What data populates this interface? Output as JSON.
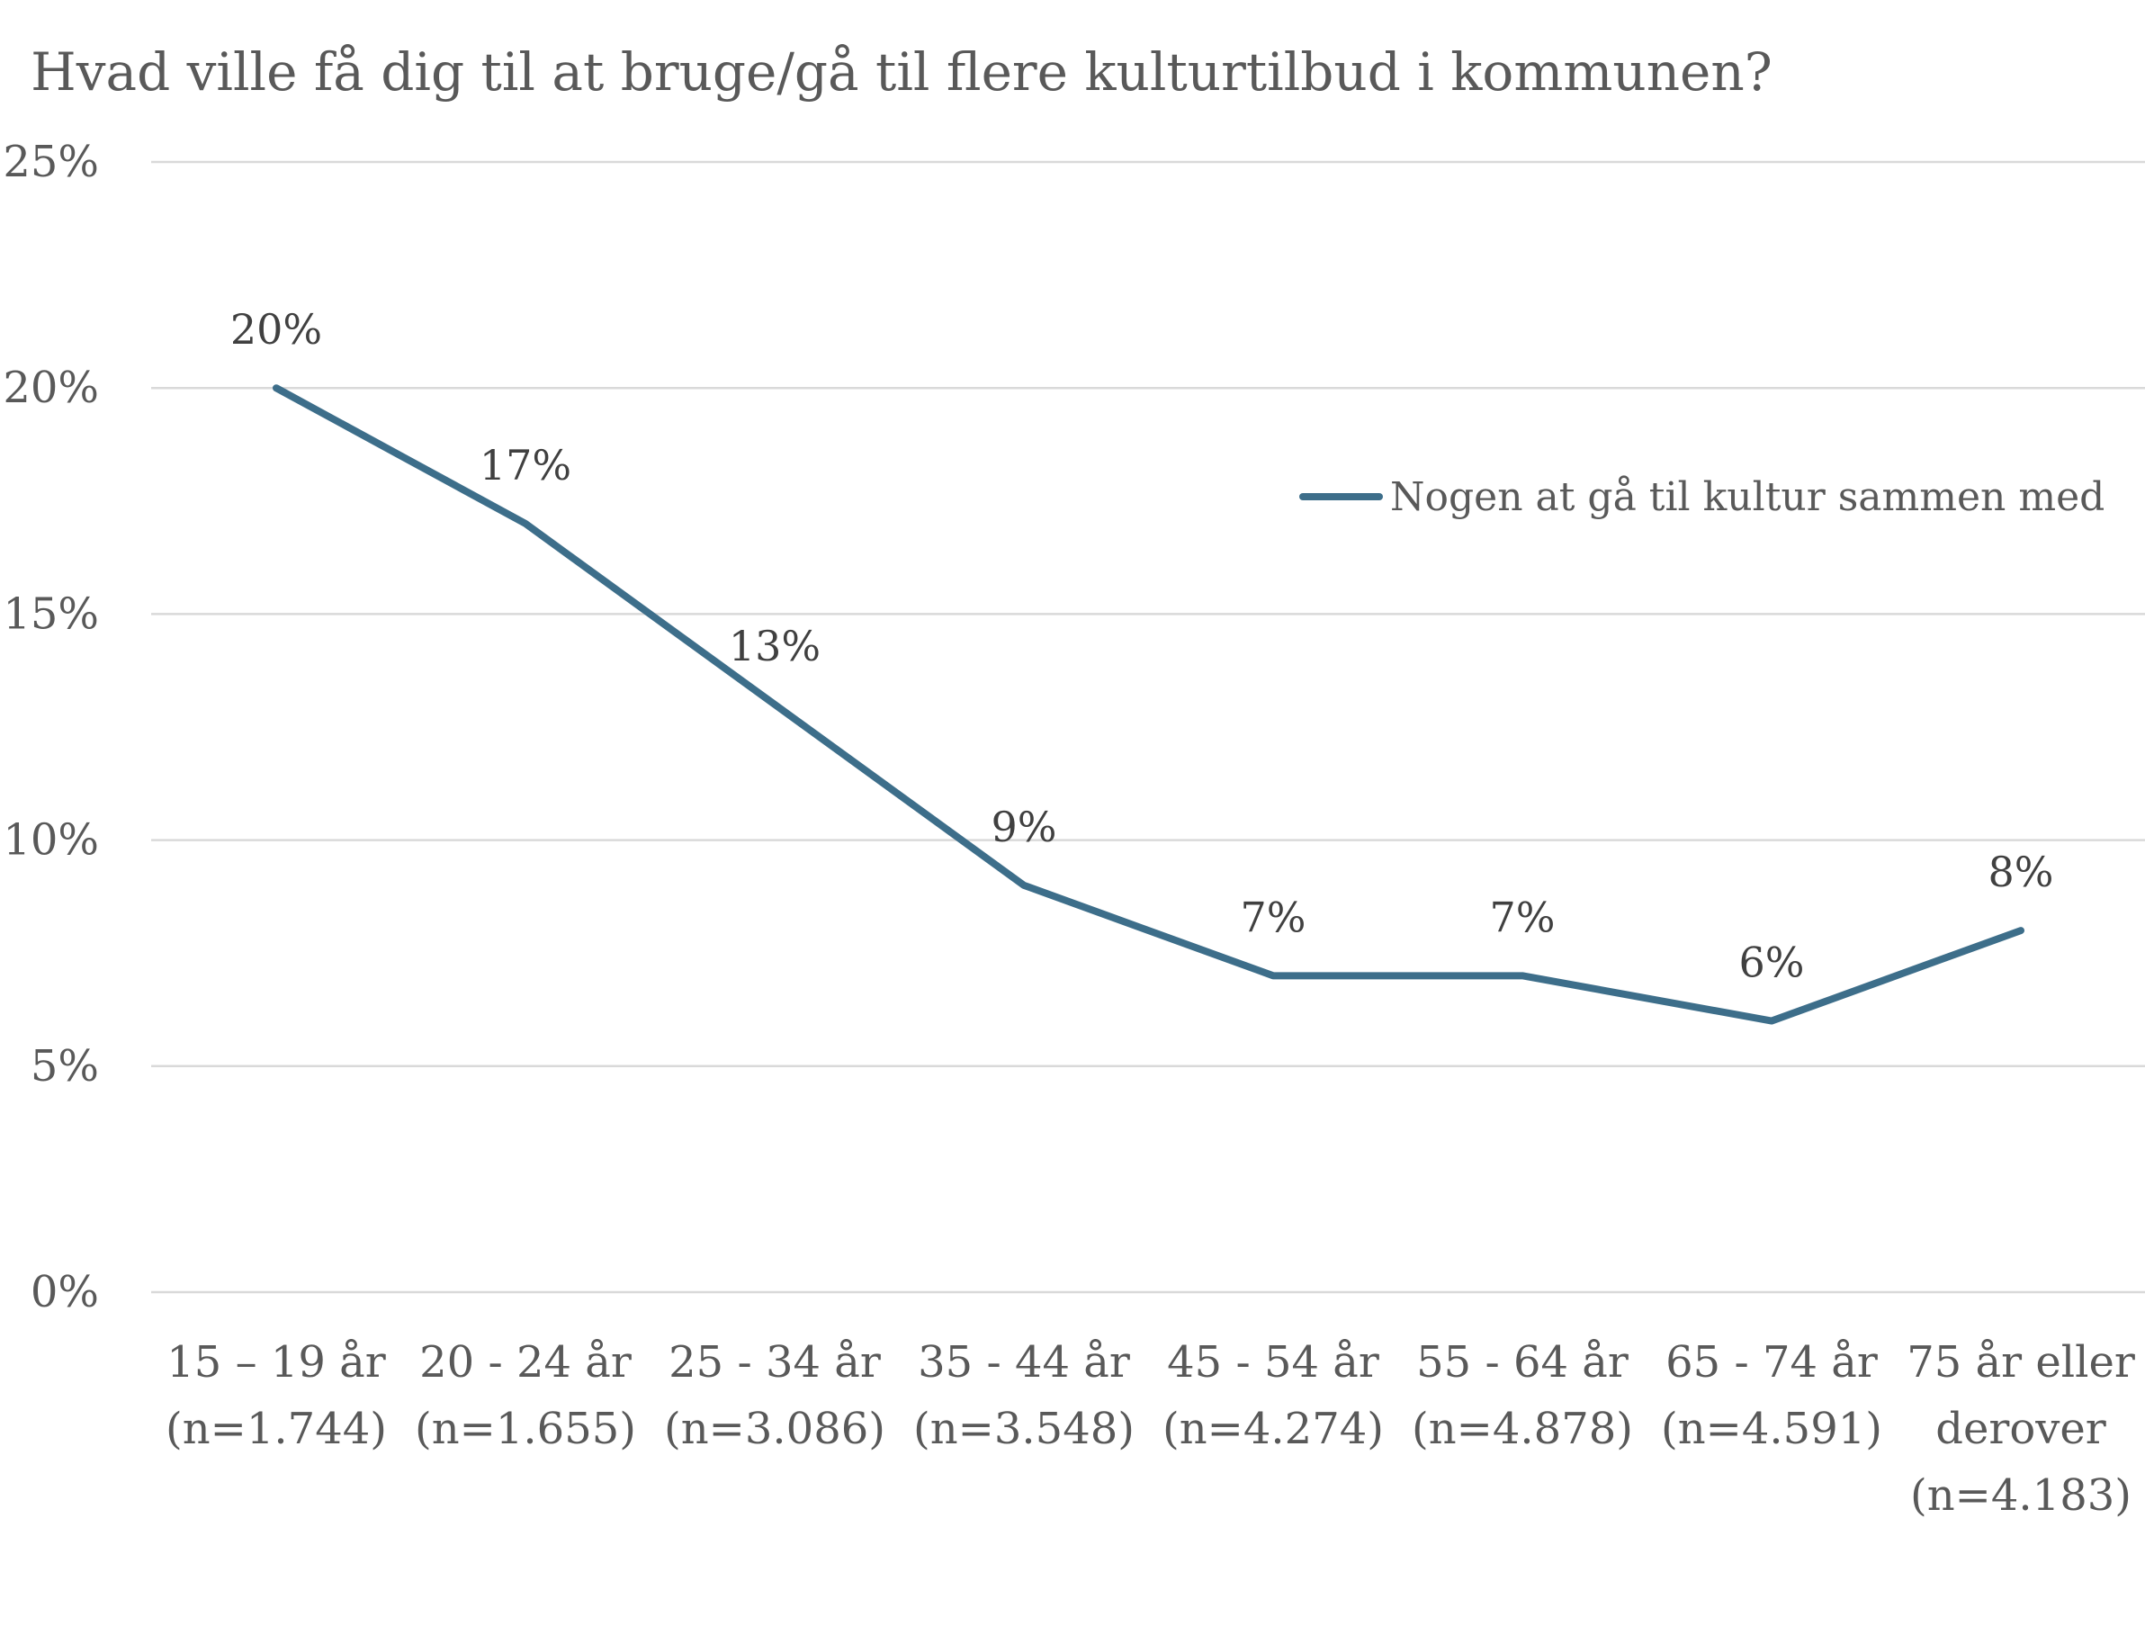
{
  "chart_data": {
    "type": "line",
    "title": "Hvad ville få dig til at bruge/gå til flere kulturtilbud i kommunen?",
    "xlabel": "",
    "ylabel": "",
    "ylim": [
      0,
      25
    ],
    "ytick_values": [
      0,
      5,
      10,
      15,
      20,
      25
    ],
    "ytick_labels": [
      "0%",
      "5%",
      "10%",
      "15%",
      "20%",
      "25%"
    ],
    "grid": true,
    "legend_position": "upper-right",
    "categories": [
      [
        "15 – 19 år",
        "(n=1.744)"
      ],
      [
        "20 - 24 år",
        "(n=1.655)"
      ],
      [
        "25 - 34 år",
        "(n=3.086)"
      ],
      [
        "35 - 44 år",
        "(n=3.548)"
      ],
      [
        "45 - 54 år",
        "(n=4.274)"
      ],
      [
        "55 - 64 år",
        "(n=4.878)"
      ],
      [
        "65 - 74 år",
        "(n=4.591)"
      ],
      [
        "75 år eller",
        "derover",
        "(n=4.183)"
      ]
    ],
    "series": [
      {
        "name": "Nogen at gå til kultur sammen med",
        "color": "#3d6e8a",
        "values": [
          20,
          17,
          13,
          9,
          7,
          7,
          6,
          8
        ],
        "data_labels": [
          "20%",
          "17%",
          "13%",
          "9%",
          "7%",
          "7%",
          "6%",
          "8%"
        ]
      }
    ]
  }
}
